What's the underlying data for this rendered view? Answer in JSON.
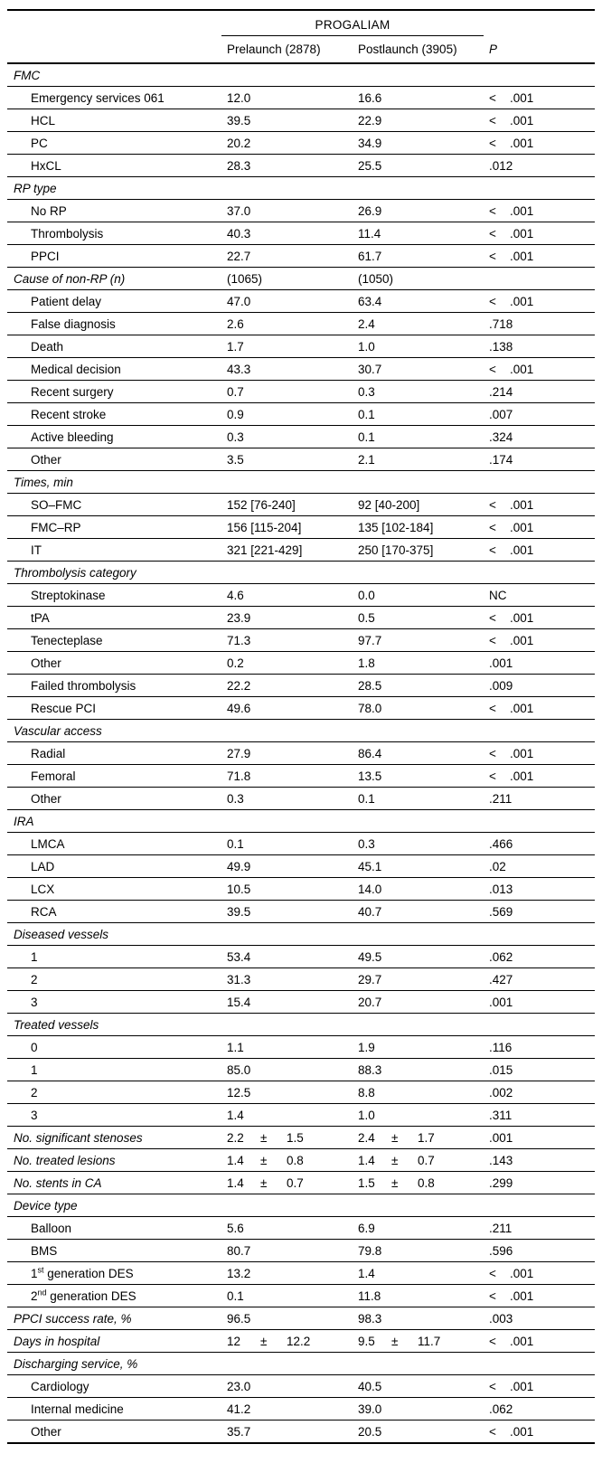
{
  "table": {
    "group_header": "PROGALIAM",
    "col_headers": {
      "prelaunch": "Prelaunch (2878)",
      "postlaunch": "Postlaunch (3905)",
      "p": "P"
    },
    "rows": [
      {
        "type": "section",
        "label": "FMC",
        "pre": "",
        "post": "",
        "p": ""
      },
      {
        "type": "data",
        "label": "Emergency services 061",
        "pre": "12.0",
        "post": "16.6",
        "p": "< .001"
      },
      {
        "type": "data",
        "label": "HCL",
        "pre": "39.5",
        "post": "22.9",
        "p": "< .001"
      },
      {
        "type": "data",
        "label": "PC",
        "pre": "20.2",
        "post": "34.9",
        "p": "< .001"
      },
      {
        "type": "data",
        "label": "HxCL",
        "pre": "28.3",
        "post": "25.5",
        "p": ".012"
      },
      {
        "type": "section",
        "label": "RP type",
        "pre": "",
        "post": "",
        "p": ""
      },
      {
        "type": "data",
        "label": "No RP",
        "pre": "37.0",
        "post": "26.9",
        "p": "< .001"
      },
      {
        "type": "data",
        "label": "Thrombolysis",
        "pre": "40.3",
        "post": "11.4",
        "p": "< .001"
      },
      {
        "type": "data",
        "label": "PPCI",
        "pre": "22.7",
        "post": "61.7",
        "p": "< .001"
      },
      {
        "type": "section",
        "label": "Cause of non-RP (n)",
        "pre": "(1065)",
        "post": "(1050)",
        "p": ""
      },
      {
        "type": "data",
        "label": "Patient delay",
        "pre": "47.0",
        "post": "63.4",
        "p": "< .001"
      },
      {
        "type": "data",
        "label": "False diagnosis",
        "pre": "2.6",
        "post": "2.4",
        "p": ".718"
      },
      {
        "type": "data",
        "label": "Death",
        "pre": "1.7",
        "post": "1.0",
        "p": ".138"
      },
      {
        "type": "data",
        "label": "Medical decision",
        "pre": "43.3",
        "post": "30.7",
        "p": "< .001"
      },
      {
        "type": "data",
        "label": "Recent surgery",
        "pre": "0.7",
        "post": "0.3",
        "p": ".214"
      },
      {
        "type": "data",
        "label": "Recent stroke",
        "pre": "0.9",
        "post": "0.1",
        "p": ".007"
      },
      {
        "type": "data",
        "label": "Active bleeding",
        "pre": "0.3",
        "post": "0.1",
        "p": ".324"
      },
      {
        "type": "data",
        "label": "Other",
        "pre": "3.5",
        "post": "2.1",
        "p": ".174"
      },
      {
        "type": "section",
        "label": "Times, min",
        "pre": "",
        "post": "",
        "p": ""
      },
      {
        "type": "data",
        "label": "SO–FMC",
        "pre": "152 [76-240]",
        "post": "92 [40-200]",
        "p": "< .001"
      },
      {
        "type": "data",
        "label": "FMC–RP",
        "pre": "156 [115-204]",
        "post": "135 [102-184]",
        "p": "< .001"
      },
      {
        "type": "data",
        "label": "IT",
        "pre": "321 [221-429]",
        "post": "250 [170-375]",
        "p": "< .001"
      },
      {
        "type": "section",
        "label": "Thrombolysis category",
        "pre": "",
        "post": "",
        "p": ""
      },
      {
        "type": "data",
        "label": "Streptokinase",
        "pre": "4.6",
        "post": "0.0",
        "p": "NC"
      },
      {
        "type": "data",
        "label": "tPA",
        "pre": "23.9",
        "post": "0.5",
        "p": "< .001"
      },
      {
        "type": "data",
        "label": "Tenecteplase",
        "pre": "71.3",
        "post": "97.7",
        "p": "< .001"
      },
      {
        "type": "data",
        "label": "Other",
        "pre": "0.2",
        "post": "1.8",
        "p": ".001"
      },
      {
        "type": "data",
        "label": "Failed thrombolysis",
        "pre": "22.2",
        "post": "28.5",
        "p": ".009"
      },
      {
        "type": "data",
        "label": "Rescue PCI",
        "pre": "49.6",
        "post": "78.0",
        "p": "< .001"
      },
      {
        "type": "section",
        "label": "Vascular access",
        "pre": "",
        "post": "",
        "p": ""
      },
      {
        "type": "data",
        "label": "Radial",
        "pre": "27.9",
        "post": "86.4",
        "p": "< .001"
      },
      {
        "type": "data",
        "label": "Femoral",
        "pre": "71.8",
        "post": "13.5",
        "p": "< .001"
      },
      {
        "type": "data",
        "label": "Other",
        "pre": "0.3",
        "post": "0.1",
        "p": ".211"
      },
      {
        "type": "section",
        "label": "IRA",
        "pre": "",
        "post": "",
        "p": ""
      },
      {
        "type": "data",
        "label": "LMCA",
        "pre": "0.1",
        "post": "0.3",
        "p": ".466"
      },
      {
        "type": "data",
        "label": "LAD",
        "pre": "49.9",
        "post": "45.1",
        "p": ".02"
      },
      {
        "type": "data",
        "label": "LCX",
        "pre": "10.5",
        "post": "14.0",
        "p": ".013"
      },
      {
        "type": "data",
        "label": "RCA",
        "pre": "39.5",
        "post": "40.7",
        "p": ".569"
      },
      {
        "type": "section",
        "label": "Diseased vessels",
        "pre": "",
        "post": "",
        "p": ""
      },
      {
        "type": "data",
        "label": "1",
        "pre": "53.4",
        "post": "49.5",
        "p": ".062"
      },
      {
        "type": "data",
        "label": "2",
        "pre": "31.3",
        "post": "29.7",
        "p": ".427"
      },
      {
        "type": "data",
        "label": "3",
        "pre": "15.4",
        "post": "20.7",
        "p": ".001"
      },
      {
        "type": "section",
        "label": "Treated vessels",
        "pre": "",
        "post": "",
        "p": ""
      },
      {
        "type": "data",
        "label": "0",
        "pre": "1.1",
        "post": "1.9",
        "p": ".116"
      },
      {
        "type": "data",
        "label": "1",
        "pre": "85.0",
        "post": "88.3",
        "p": ".015"
      },
      {
        "type": "data",
        "label": "2",
        "pre": "12.5",
        "post": "8.8",
        "p": ".002"
      },
      {
        "type": "data",
        "label": "3",
        "pre": "1.4",
        "post": "1.0",
        "p": ".311"
      },
      {
        "type": "section",
        "label": "No. significant stenoses",
        "pre": "2.2 ± 1.5",
        "post": "2.4 ± 1.7",
        "p": ".001"
      },
      {
        "type": "section",
        "label": "No. treated lesions",
        "pre": "1.4 ± 0.8",
        "post": "1.4 ± 0.7",
        "p": ".143"
      },
      {
        "type": "section",
        "label": "No. stents in CA",
        "pre": "1.4 ± 0.7",
        "post": "1.5 ± 0.8",
        "p": ".299"
      },
      {
        "type": "section",
        "label": "Device type",
        "pre": "",
        "post": "",
        "p": ""
      },
      {
        "type": "data",
        "label": "Balloon",
        "pre": "5.6",
        "post": "6.9",
        "p": ".211"
      },
      {
        "type": "data",
        "label": "BMS",
        "pre": "80.7",
        "post": "79.8",
        "p": ".596"
      },
      {
        "type": "data",
        "label": "1st generation DES",
        "sup_ordinal": true,
        "pre": "13.2",
        "post": "1.4",
        "p": "< .001"
      },
      {
        "type": "data",
        "label": "2nd generation DES",
        "sup_ordinal": true,
        "pre": "0.1",
        "post": "11.8",
        "p": "< .001"
      },
      {
        "type": "section",
        "label": "PPCI success rate, %",
        "pre": "96.5",
        "post": "98.3",
        "p": ".003"
      },
      {
        "type": "section",
        "label": "Days in hospital",
        "pre": "12 ± 12.2",
        "post": "9.5 ± 11.7",
        "p": "< .001"
      },
      {
        "type": "section",
        "label": "Discharging service, %",
        "pre": "",
        "post": "",
        "p": ""
      },
      {
        "type": "data",
        "label": "Cardiology",
        "pre": "23.0",
        "post": "40.5",
        "p": "< .001"
      },
      {
        "type": "data",
        "label": "Internal medicine",
        "pre": "41.2",
        "post": "39.0",
        "p": ".062"
      },
      {
        "type": "data",
        "label": "Other",
        "pre": "35.7",
        "post": "20.5",
        "p": "< .001"
      }
    ]
  }
}
